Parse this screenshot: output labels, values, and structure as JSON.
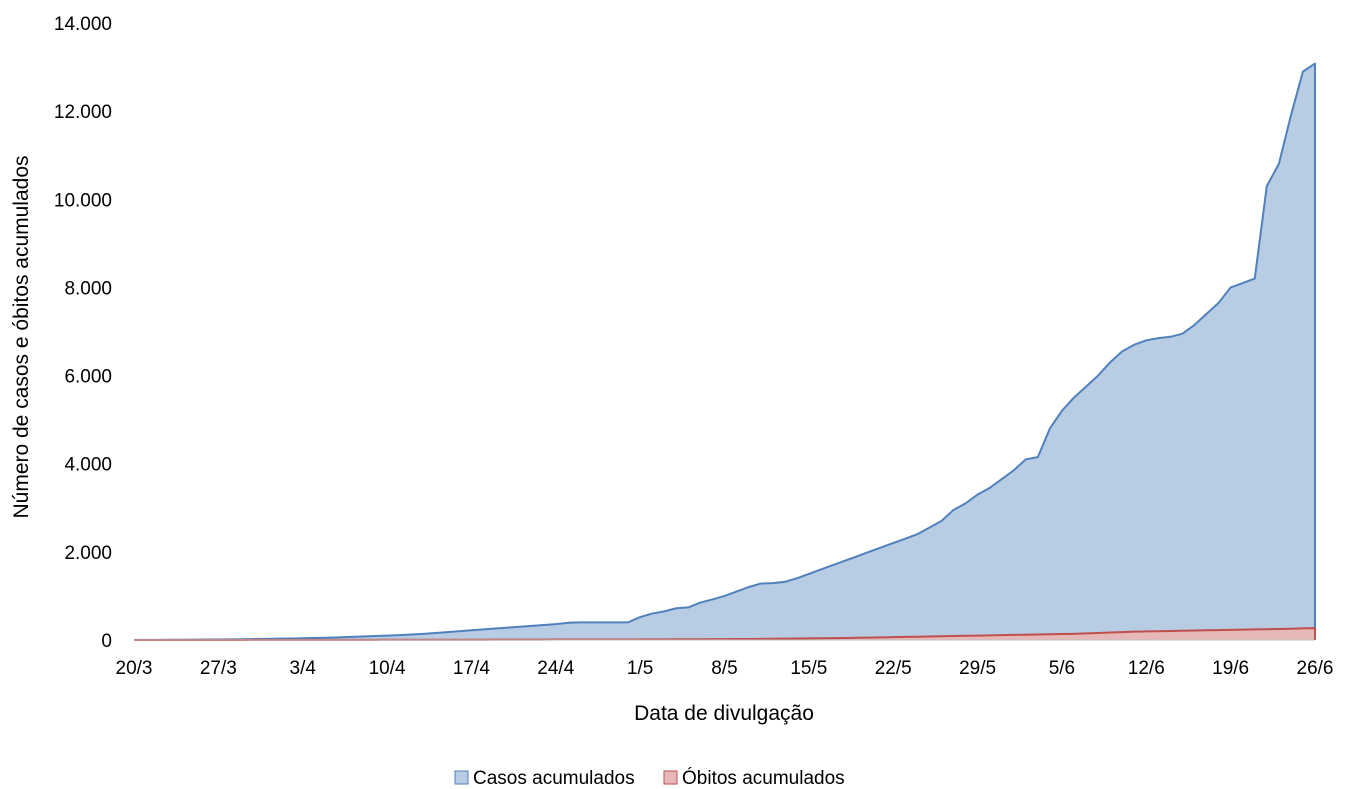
{
  "chart_data": {
    "type": "area",
    "xlabel": "Data de divulgação",
    "ylabel": "Número de casos e óbitos acumulados",
    "ylim": [
      0,
      14000
    ],
    "yticks": [
      "0",
      "2.000",
      "4.000",
      "6.000",
      "8.000",
      "10.000",
      "12.000",
      "14.000"
    ],
    "ytick_values": [
      0,
      2000,
      4000,
      6000,
      8000,
      10000,
      12000,
      14000
    ],
    "xticks": [
      "20/3",
      "27/3",
      "3/4",
      "10/4",
      "17/4",
      "24/4",
      "1/5",
      "8/5",
      "15/5",
      "22/5",
      "29/5",
      "5/6",
      "12/6",
      "19/6",
      "26/6"
    ],
    "x_start": "20/3",
    "x_end": "26/6",
    "grid": false,
    "legend_position": "bottom",
    "series": [
      {
        "name": "Casos acumulados",
        "fill": "#b8cce4",
        "stroke": "#4f81bd",
        "values": [
          2,
          3,
          4,
          5,
          6,
          8,
          10,
          12,
          15,
          18,
          22,
          26,
          30,
          35,
          40,
          45,
          52,
          60,
          70,
          80,
          90,
          100,
          110,
          125,
          140,
          160,
          180,
          200,
          220,
          240,
          260,
          280,
          300,
          320,
          340,
          360,
          390,
          400,
          400,
          400,
          400,
          400,
          520,
          600,
          650,
          720,
          740,
          850,
          920,
          1000,
          1100,
          1200,
          1280,
          1290,
          1320,
          1400,
          1500,
          1600,
          1700,
          1800,
          1900,
          2000,
          2100,
          2200,
          2300,
          2400,
          2550,
          2700,
          2950,
          3100,
          3300,
          3450,
          3650,
          3850,
          4100,
          4150,
          4800,
          5200,
          5500,
          5750,
          6000,
          6300,
          6550,
          6700,
          6800,
          6850,
          6880,
          6950,
          7150,
          7400,
          7650,
          8000,
          8100,
          8200,
          10300,
          10800,
          11900,
          12900,
          13080
        ]
      },
      {
        "name": "Óbitos acumulados",
        "fill": "#e6b9b8",
        "stroke": "#c0504d",
        "values": [
          0,
          0,
          0,
          0,
          0,
          0,
          1,
          1,
          1,
          1,
          2,
          2,
          2,
          2,
          3,
          3,
          3,
          3,
          4,
          4,
          4,
          5,
          5,
          5,
          6,
          6,
          6,
          7,
          7,
          7,
          8,
          8,
          8,
          9,
          9,
          10,
          10,
          10,
          11,
          11,
          12,
          12,
          13,
          14,
          15,
          16,
          17,
          18,
          19,
          20,
          22,
          24,
          26,
          28,
          30,
          33,
          36,
          39,
          42,
          45,
          50,
          55,
          60,
          65,
          70,
          75,
          80,
          85,
          90,
          95,
          100,
          105,
          110,
          115,
          120,
          125,
          130,
          135,
          140,
          150,
          160,
          170,
          180,
          190,
          195,
          200,
          205,
          210,
          215,
          220,
          225,
          230,
          235,
          240,
          245,
          250,
          255,
          265,
          270
        ]
      }
    ]
  }
}
